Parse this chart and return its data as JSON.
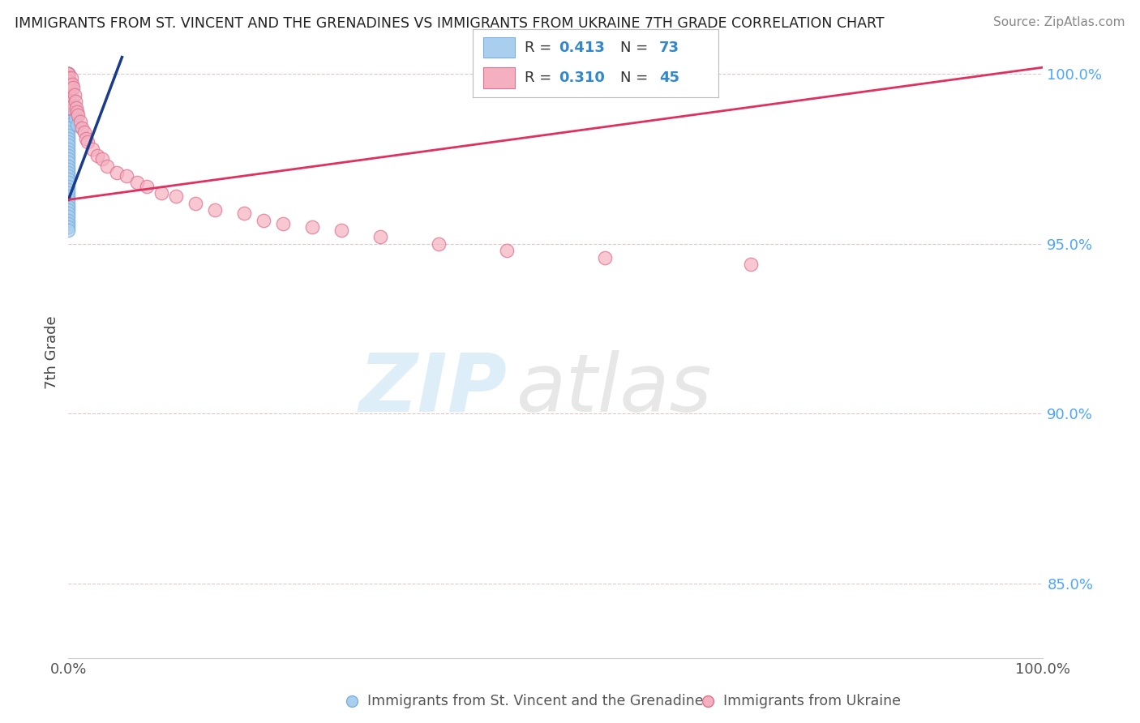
{
  "title": "IMMIGRANTS FROM ST. VINCENT AND THE GRENADINES VS IMMIGRANTS FROM UKRAINE 7TH GRADE CORRELATION CHART",
  "source": "Source: ZipAtlas.com",
  "ylabel": "7th Grade",
  "xlim": [
    0.0,
    1.0
  ],
  "ylim": [
    0.828,
    1.008
  ],
  "right_yticks": [
    0.85,
    0.9,
    0.95,
    1.0
  ],
  "right_yticklabels": [
    "85.0%",
    "90.0%",
    "95.0%",
    "100.0%"
  ],
  "blue_color": "#aacfee",
  "blue_edge_color": "#7aafdd",
  "pink_color": "#f4b0c0",
  "pink_edge_color": "#e07090",
  "blue_line_color": "#1a3a8a",
  "pink_line_color": "#e03060",
  "legend_R_blue": "0.413",
  "legend_N_blue": "73",
  "legend_R_pink": "0.310",
  "legend_N_pink": "45",
  "blue_trendline_x": [
    0.0,
    0.055
  ],
  "blue_trendline_y": [
    0.963,
    1.005
  ],
  "pink_trendline_x": [
    0.0,
    1.0
  ],
  "pink_trendline_y": [
    0.963,
    1.002
  ],
  "blue_scatter_x": [
    0.0,
    0.0,
    0.0,
    0.0,
    0.0,
    0.0,
    0.0,
    0.0,
    0.0,
    0.0,
    0.0,
    0.0,
    0.0,
    0.0,
    0.0,
    0.0,
    0.0,
    0.0,
    0.0,
    0.0,
    0.0,
    0.0,
    0.0,
    0.0,
    0.0,
    0.0,
    0.0,
    0.0,
    0.0,
    0.0,
    0.0,
    0.0,
    0.0,
    0.0,
    0.0,
    0.0,
    0.0,
    0.0,
    0.0,
    0.0,
    0.0,
    0.0,
    0.0,
    0.0,
    0.0,
    0.0,
    0.0,
    0.0,
    0.0,
    0.0,
    0.0,
    0.0,
    0.0,
    0.0,
    0.0,
    0.0,
    0.0,
    0.0,
    0.0,
    0.0,
    0.0,
    0.0,
    0.0,
    0.001,
    0.001,
    0.002,
    0.002,
    0.003,
    0.004,
    0.005,
    0.006,
    0.007,
    0.009
  ],
  "blue_scatter_y": [
    1.0,
    1.0,
    1.0,
    1.0,
    1.0,
    0.999,
    0.999,
    0.998,
    0.998,
    0.997,
    0.997,
    0.996,
    0.996,
    0.995,
    0.995,
    0.994,
    0.994,
    0.993,
    0.993,
    0.992,
    0.992,
    0.991,
    0.991,
    0.99,
    0.99,
    0.989,
    0.989,
    0.988,
    0.987,
    0.986,
    0.985,
    0.985,
    0.984,
    0.983,
    0.982,
    0.981,
    0.98,
    0.979,
    0.978,
    0.977,
    0.976,
    0.975,
    0.974,
    0.973,
    0.972,
    0.971,
    0.97,
    0.969,
    0.968,
    0.967,
    0.966,
    0.965,
    0.964,
    0.963,
    0.962,
    0.961,
    0.96,
    0.959,
    0.958,
    0.957,
    0.956,
    0.955,
    0.954,
    0.998,
    0.993,
    0.997,
    0.991,
    0.995,
    0.993,
    0.991,
    0.989,
    0.987,
    0.985
  ],
  "pink_scatter_x": [
    0.0,
    0.0,
    0.0,
    0.0,
    0.0,
    0.0,
    0.0,
    0.0,
    0.0,
    0.0,
    0.003,
    0.004,
    0.005,
    0.006,
    0.007,
    0.008,
    0.009,
    0.01,
    0.012,
    0.014,
    0.016,
    0.018,
    0.02,
    0.025,
    0.03,
    0.035,
    0.04,
    0.05,
    0.06,
    0.07,
    0.08,
    0.095,
    0.11,
    0.13,
    0.15,
    0.18,
    0.2,
    0.22,
    0.25,
    0.28,
    0.32,
    0.38,
    0.45,
    0.55,
    0.7
  ],
  "pink_scatter_y": [
    1.0,
    1.0,
    0.999,
    0.998,
    0.997,
    0.996,
    0.995,
    0.994,
    0.992,
    0.99,
    0.999,
    0.997,
    0.996,
    0.994,
    0.992,
    0.99,
    0.989,
    0.988,
    0.986,
    0.984,
    0.983,
    0.981,
    0.98,
    0.978,
    0.976,
    0.975,
    0.973,
    0.971,
    0.97,
    0.968,
    0.967,
    0.965,
    0.964,
    0.962,
    0.96,
    0.959,
    0.957,
    0.956,
    0.955,
    0.954,
    0.952,
    0.95,
    0.948,
    0.946,
    0.944
  ]
}
